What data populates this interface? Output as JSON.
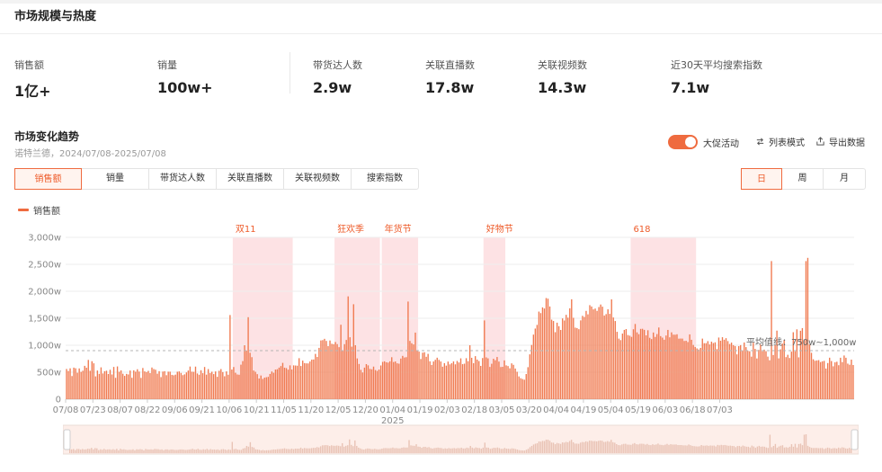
{
  "section": {
    "title": "市场规模与热度"
  },
  "metrics": [
    {
      "label": "销售额",
      "value": "1亿+"
    },
    {
      "label": "销量",
      "value": "100w+"
    },
    {
      "label": "带货达人数",
      "value": "2.9w"
    },
    {
      "label": "关联直播数",
      "value": "17.8w"
    },
    {
      "label": "关联视频数",
      "value": "14.3w"
    },
    {
      "label": "近30天平均搜索指数",
      "value": "7.1w"
    }
  ],
  "trend": {
    "title": "市场变化趋势",
    "subtitle": "诺特兰德，2024/07/08-2025/07/08",
    "promo_toggle": "大促活动",
    "list_mode": "列表模式",
    "export": "导出数据"
  },
  "metric_tabs": [
    "销售额",
    "销量",
    "带货达人数",
    "关联直播数",
    "关联视频数",
    "搜索指数"
  ],
  "period_tabs": [
    "日",
    "周",
    "月"
  ],
  "colors": {
    "accent": "#ef6b3f",
    "promo_band": "#fde2e4",
    "bar": "#f07a50"
  },
  "chart_data": {
    "type": "bar",
    "legend": "销售额",
    "y_unit": "w",
    "yticks": [
      "0",
      "500w",
      "1,000w",
      "1,500w",
      "2,000w",
      "2,500w",
      "3,000w"
    ],
    "ylim": [
      0,
      3000
    ],
    "x_ticks": [
      "07/08",
      "07/23",
      "08/07",
      "08/22",
      "09/06",
      "09/21",
      "10/06",
      "10/21",
      "11/05",
      "11/20",
      "12/05",
      "12/20",
      "01/04",
      "01/19",
      "02/03",
      "02/18",
      "03/05",
      "03/20",
      "04/04",
      "04/19",
      "05/04",
      "05/19",
      "06/03",
      "06/18",
      "07/03"
    ],
    "year_label": "2025",
    "x_start": "2024-07-08",
    "x_end": "2025-07-08",
    "promotions": [
      {
        "name": "双11",
        "start": "2024-10-08",
        "end": "2024-11-09"
      },
      {
        "name": "狂欢季",
        "start": "2024-12-03",
        "end": "2024-12-27"
      },
      {
        "name": "年货节",
        "start": "2024-12-29",
        "end": "2025-01-17"
      },
      {
        "name": "好物节",
        "start": "2025-02-23",
        "end": "2025-03-06"
      },
      {
        "name": "618",
        "start": "2025-05-15",
        "end": "2025-06-19"
      }
    ],
    "avg_line": {
      "label": "平均值线：750w~1,000w",
      "value": 900
    },
    "daily_values": [
      560,
      523,
      572,
      429,
      585,
      573,
      490,
      570,
      506,
      528,
      618,
      584,
      728,
      527,
      704,
      665,
      423,
      532,
      469,
      590,
      477,
      519,
      528,
      467,
      546,
      458,
      598,
      396,
      607,
      508,
      534,
      472,
      432,
      469,
      459,
      532,
      397,
      535,
      510,
      555,
      512,
      395,
      578,
      515,
      502,
      525,
      483,
      587,
      559,
      547,
      473,
      519,
      409,
      512,
      519,
      445,
      510,
      510,
      451,
      443,
      455,
      509,
      515,
      487,
      446,
      460,
      496,
      531,
      605,
      510,
      507,
      604,
      477,
      453,
      537,
      482,
      597,
      455,
      558,
      485,
      509,
      465,
      514,
      415,
      527,
      558,
      502,
      425,
      515,
      454,
      1560,
      550,
      596,
      491,
      458,
      453,
      640,
      706,
      1000,
      900,
      1520,
      860,
      779,
      531,
      508,
      464,
      383,
      439,
      375,
      399,
      407,
      414,
      467,
      513,
      491,
      549,
      555,
      585,
      614,
      673,
      584,
      576,
      547,
      627,
      551,
      627,
      624,
      621,
      760,
      615,
      715,
      669,
      664,
      663,
      699,
      734,
      736,
      840,
      783,
      951,
      1089,
      1095,
      1119,
      1080,
      983,
      1088,
      1027,
      1019,
      1060,
      1021,
      964,
      1380,
      899,
      1020,
      1098,
      1906,
      1148,
      973,
      1760,
      1001,
      756,
      653,
      544,
      496,
      585,
      650,
      627,
      561,
      554,
      604,
      540,
      524,
      550,
      625,
      691,
      702,
      684,
      678,
      702,
      778,
      689,
      699,
      665,
      658,
      753,
      803,
      773,
      779,
      1810,
      1080,
      1037,
      1015,
      1234,
      908,
      882,
      745,
      862,
      870,
      786,
      840,
      702,
      635,
      699,
      730,
      769,
      729,
      699,
      603,
      668,
      622,
      697,
      645,
      666,
      700,
      646,
      708,
      680,
      757,
      649,
      658,
      760,
      704,
      1000,
      767,
      667,
      798,
      734,
      707,
      617,
      763,
      1460,
      775,
      757,
      598,
      657,
      749,
      722,
      782,
      697,
      596,
      600,
      719,
      627,
      614,
      572,
      664,
      637,
      568,
      508,
      422,
      389,
      374,
      361,
      466,
      593,
      831,
      1005,
      1197,
      1309,
      1377,
      1624,
      1596,
      1702,
      1681,
      1875,
      1863,
      1718,
      1474,
      1449,
      1242,
      1418,
      1353,
      1283,
      1497,
      1459,
      1564,
      1512,
      1684,
      1852,
      1509,
      1326,
      1318,
      1297,
      1461,
      1545,
      1525,
      1637,
      1573,
      1743,
      1718,
      1665,
      1680,
      1637,
      1708,
      1755,
      1715,
      1551,
      1577,
      1666,
      1582,
      1850,
      1515,
      1449,
      1249,
      1123,
      1095,
      1216,
      1284,
      1300,
      1189,
      1177,
      1155,
      1296,
      1394,
      1239,
      1205,
      1303,
      1305,
      1285,
      1183,
      1278,
      1138,
      1114,
      1236,
      1154,
      1207,
      1329,
      1169,
      1141,
      1102,
      1180,
      1284,
      1147,
      1239,
      1196,
      1195,
      1203,
      1122,
      1124,
      1123,
      1079,
      1083,
      1059,
      1201,
      1101,
      1006,
      967,
      941,
      921,
      951,
      1123,
      1038,
      1038,
      1076,
      1015,
      1066,
      1040,
      1054,
      928,
      1143,
      1084,
      1149,
      1102,
      1131,
      1077,
      1023,
      1049,
      1002,
      985,
      831,
      984,
      1002,
      906,
      1051,
      965,
      897,
      888,
      789,
      1047,
      932,
      755,
      914,
      1013,
      888,
      919,
      890,
      789,
      722,
      2560,
      819,
      1000,
      1271,
      757,
      924,
      1030,
      1096,
      780,
      823,
      764,
      881,
      1241,
      887,
      1295,
      776,
      1268,
      1318,
      1108,
      2560,
      2620,
      1015,
      860,
      740,
      712,
      718,
      724,
      688,
      702,
      710,
      568,
      670,
      769,
      707,
      610,
      683,
      694,
      630,
      768,
      688,
      810,
      768,
      659,
      639,
      733,
      633
    ]
  }
}
